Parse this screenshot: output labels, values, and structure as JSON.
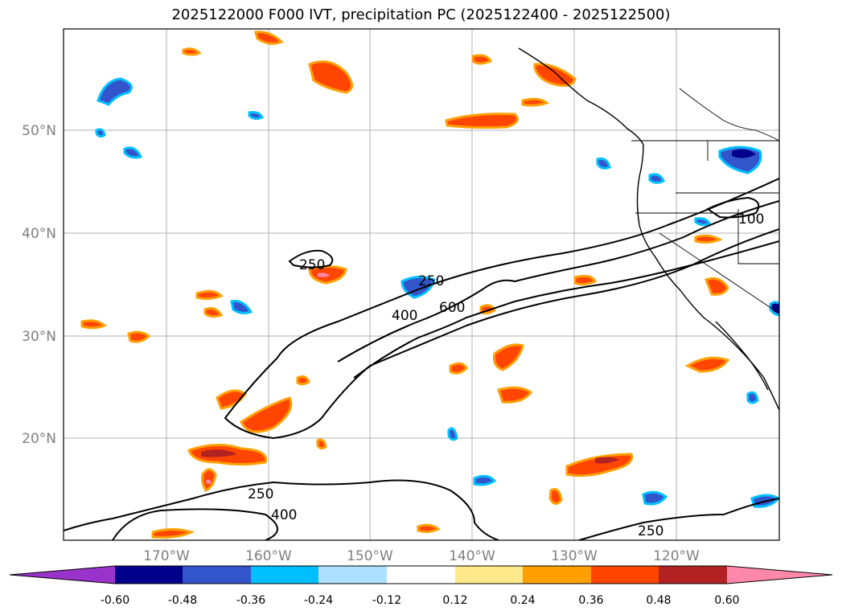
{
  "title": "2025122000 F000 IVT, precipitation PC (2025122400 - 2025122500)",
  "map": {
    "lon_ticks": [
      "170°W",
      "160°W",
      "150°W",
      "140°W",
      "130°W",
      "120°W"
    ],
    "lat_ticks": [
      "50°N",
      "40°N",
      "30°N",
      "20°N"
    ],
    "ivt_contour_labels": [
      "250",
      "250",
      "400",
      "600",
      "250",
      "400",
      "250",
      "100"
    ]
  },
  "colorbar": {
    "tick_labels": [
      "-0.60",
      "-0.48",
      "-0.36",
      "-0.24",
      "-0.12",
      "0.12",
      "0.24",
      "0.36",
      "0.48",
      "0.60"
    ],
    "colors": [
      "#9933cc",
      "#00008b",
      "#3355cc",
      "#00bfff",
      "#aee0ff",
      "#ffffff",
      "#ffe98a",
      "#ff9f00",
      "#ff4500",
      "#b22222",
      "#ff88aa"
    ]
  }
}
